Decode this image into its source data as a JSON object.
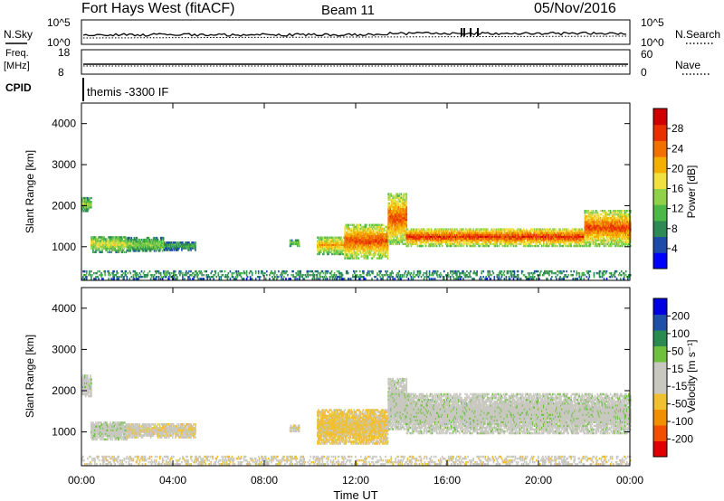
{
  "header": {
    "station": "Fort Hays West (fitACF)",
    "beam": "Beam 11",
    "date": "05/Nov/2016"
  },
  "noise_panel": {
    "left_label": "N.Sky",
    "left_ticks": [
      "10^5",
      "10^0"
    ],
    "right_ticks": [
      "10^5",
      "10^0"
    ],
    "right_label": "N.Search"
  },
  "freq_panel": {
    "left_label_1": "Freq.",
    "left_label_2": "[MHz]",
    "left_ticks": [
      "18",
      "8"
    ],
    "right_ticks": [
      "60",
      "0"
    ],
    "right_label": "Nave"
  },
  "cpid": {
    "label": "CPID",
    "value": "themis -3300 IF"
  },
  "colors": {
    "power_scale": [
      "#0000ff",
      "#1c4ba8",
      "#2d8a55",
      "#4cb848",
      "#8fd24a",
      "#f0e040",
      "#f4b000",
      "#f07000",
      "#e83000",
      "#d00000"
    ],
    "velocity_scale": [
      "#e00000",
      "#f05000",
      "#f09000",
      "#f0c030",
      "#c8c8c0",
      "#c8c8c0",
      "#70c040",
      "#2a8a50",
      "#1e50a8",
      "#0000e0"
    ]
  },
  "chart_data": [
    {
      "type": "heatmap",
      "name": "power",
      "xlabel": "",
      "ylabel": "Slant Range [km]",
      "x_ticks": [
        "00:00",
        "04:00",
        "08:00",
        "12:00",
        "16:00",
        "20:00",
        "00:00"
      ],
      "y_ticks": [
        "1000",
        "2000",
        "3000",
        "4000"
      ],
      "y_values": [
        1000,
        2000,
        3000,
        4000
      ],
      "xlim": [
        0,
        24
      ],
      "ylim": [
        180,
        4500
      ],
      "colorbar": {
        "label": "Power [dB]",
        "ticks": [
          "4",
          "8",
          "12",
          "16",
          "20",
          "24",
          "28"
        ],
        "range": [
          0,
          30
        ]
      },
      "echo_regions": [
        {
          "t0": 0.0,
          "t1": 0.4,
          "r0": 1850,
          "r1": 2200,
          "level": 0.45
        },
        {
          "t0": 0.4,
          "t1": 2.0,
          "r0": 850,
          "r1": 1250,
          "level": 0.55
        },
        {
          "t0": 2.0,
          "t1": 3.6,
          "r0": 880,
          "r1": 1200,
          "level": 0.45
        },
        {
          "t0": 3.6,
          "t1": 5.0,
          "r0": 900,
          "r1": 1100,
          "level": 0.3
        },
        {
          "t0": 9.1,
          "t1": 9.5,
          "r0": 1000,
          "r1": 1150,
          "level": 0.45
        },
        {
          "t0": 10.3,
          "t1": 11.5,
          "r0": 800,
          "r1": 1250,
          "level": 0.7
        },
        {
          "t0": 11.5,
          "t1": 13.4,
          "r0": 700,
          "r1": 1550,
          "level": 0.85
        },
        {
          "t0": 13.4,
          "t1": 14.2,
          "r0": 1050,
          "r1": 2300,
          "level": 0.85
        },
        {
          "t0": 14.2,
          "t1": 22.0,
          "r0": 1000,
          "r1": 1450,
          "level": 0.9
        },
        {
          "t0": 22.0,
          "t1": 24.0,
          "r0": 1000,
          "r1": 1900,
          "level": 0.85
        },
        {
          "t0": 0.0,
          "t1": 24.0,
          "r0": 200,
          "r1": 420,
          "level": 0.3
        }
      ]
    },
    {
      "type": "heatmap",
      "name": "velocity",
      "xlabel": "Time UT",
      "ylabel": "Slant Range [km]",
      "x_ticks": [
        "00:00",
        "04:00",
        "08:00",
        "12:00",
        "16:00",
        "20:00",
        "00:00"
      ],
      "y_ticks": [
        "1000",
        "2000",
        "3000",
        "4000"
      ],
      "y_values": [
        1000,
        2000,
        3000,
        4000
      ],
      "xlim": [
        0,
        24
      ],
      "ylim": [
        180,
        4500
      ],
      "colorbar": {
        "label": "Velocity [m s⁻¹]",
        "ticks": [
          "-200",
          "-100",
          "-50",
          "-15",
          "15",
          "50",
          "100",
          "200"
        ],
        "values": [
          -200,
          -100,
          -50,
          -15,
          15,
          50,
          100,
          200
        ]
      },
      "echo_regions": [
        {
          "t0": 0.0,
          "t1": 0.4,
          "r0": 1850,
          "r1": 2350,
          "vel": 0
        },
        {
          "t0": 0.4,
          "t1": 2.0,
          "r0": 800,
          "r1": 1250,
          "vel": 0
        },
        {
          "t0": 2.0,
          "t1": 5.0,
          "r0": 850,
          "r1": 1200,
          "vel": -40
        },
        {
          "t0": 9.1,
          "t1": 9.5,
          "r0": 1000,
          "r1": 1150,
          "vel": -40
        },
        {
          "t0": 10.3,
          "t1": 13.4,
          "r0": 700,
          "r1": 1550,
          "vel": -60
        },
        {
          "t0": 13.4,
          "t1": 14.2,
          "r0": 1050,
          "r1": 2300,
          "vel": 0
        },
        {
          "t0": 14.2,
          "t1": 24.0,
          "r0": 950,
          "r1": 1900,
          "vel": 0
        },
        {
          "t0": 0.0,
          "t1": 24.0,
          "r0": 200,
          "r1": 420,
          "vel": -40
        }
      ]
    }
  ]
}
